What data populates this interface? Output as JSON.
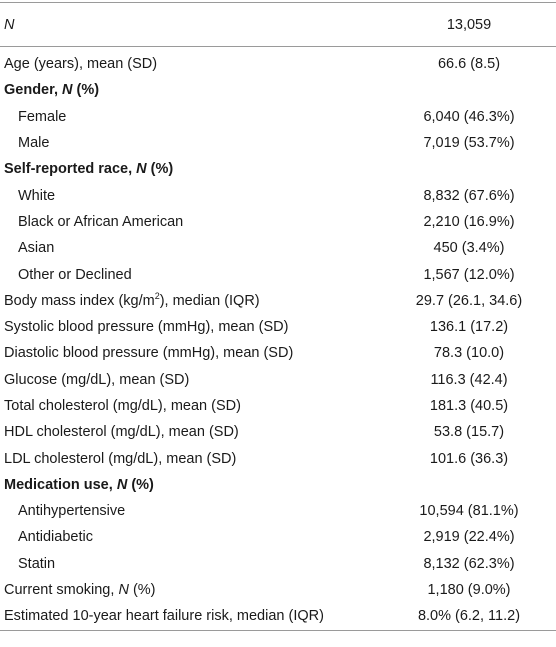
{
  "table": {
    "header": {
      "label": "N",
      "value": "13,059"
    },
    "rows": [
      {
        "label": "Age (years), mean (SD)",
        "value": "66.6 (8.5)"
      },
      {
        "label_main": "Gender, ",
        "label_italic": "N",
        "label_tail": " (%)"
      },
      {
        "label": "Female",
        "value": "6,040 (46.3%)"
      },
      {
        "label": "Male",
        "value": "7,019 (53.7%)"
      },
      {
        "label_main": "Self-reported race, ",
        "label_italic": "N",
        "label_tail": " (%)"
      },
      {
        "label": "White",
        "value": "8,832 (67.6%)"
      },
      {
        "label": "Black or African American",
        "value": "2,210 (16.9%)"
      },
      {
        "label": "Asian",
        "value": "450 (3.4%)"
      },
      {
        "label": "Other or Declined",
        "value": "1,567 (12.0%)"
      },
      {
        "label_main": "Body mass index (kg/m",
        "label_sup": "2",
        "label_tail": "), median (IQR)",
        "value": "29.7 (26.1, 34.6)"
      },
      {
        "label": "Systolic blood pressure (mmHg), mean (SD)",
        "value": "136.1 (17.2)"
      },
      {
        "label": "Diastolic blood pressure (mmHg), mean (SD)",
        "value": "78.3 (10.0)"
      },
      {
        "label": "Glucose (mg/dL), mean (SD)",
        "value": "116.3 (42.4)"
      },
      {
        "label": "Total cholesterol (mg/dL), mean (SD)",
        "value": "181.3 (40.5)"
      },
      {
        "label": "HDL cholesterol (mg/dL), mean (SD)",
        "value": "53.8 (15.7)"
      },
      {
        "label": "LDL cholesterol (mg/dL), mean (SD)",
        "value": "101.6 (36.3)"
      },
      {
        "label_main": "Medication use, ",
        "label_italic": "N",
        "label_tail": " (%)"
      },
      {
        "label": "Antihypertensive",
        "value": "10,594 (81.1%)"
      },
      {
        "label": "Antidiabetic",
        "value": "2,919 (22.4%)"
      },
      {
        "label": "Statin",
        "value": "8,132 (62.3%)"
      },
      {
        "label_main": "Current smoking, ",
        "label_italic": "N",
        "label_tail": " (%)",
        "value": "1,180 (9.0%)"
      },
      {
        "label": "Estimated 10-year heart failure risk, median (IQR)",
        "value": "8.0% (6.2, 11.2)"
      }
    ]
  }
}
